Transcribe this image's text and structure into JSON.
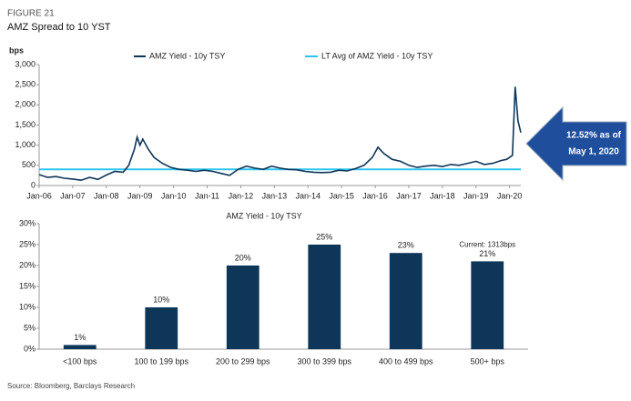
{
  "header": {
    "figure": "FIGURE 21",
    "title": "AMZ Spread to 10 YST"
  },
  "source": "Source: Bloomberg, Barclays Research",
  "chart_data": [
    {
      "type": "line",
      "ylabel": "bps",
      "x": [
        "2006-01",
        "2006-04",
        "2006-07",
        "2006-10",
        "2007-01",
        "2007-04",
        "2007-07",
        "2007-10",
        "2008-01",
        "2008-04",
        "2008-07",
        "2008-09",
        "2008-11",
        "2008-12",
        "2009-01",
        "2009-02",
        "2009-04",
        "2009-06",
        "2009-09",
        "2009-12",
        "2010-03",
        "2010-06",
        "2010-09",
        "2010-12",
        "2011-03",
        "2011-06",
        "2011-09",
        "2011-12",
        "2012-03",
        "2012-06",
        "2012-09",
        "2012-12",
        "2013-03",
        "2013-06",
        "2013-09",
        "2013-12",
        "2014-03",
        "2014-06",
        "2014-09",
        "2014-12",
        "2015-03",
        "2015-06",
        "2015-09",
        "2015-12",
        "2016-02",
        "2016-04",
        "2016-07",
        "2016-10",
        "2017-01",
        "2017-04",
        "2017-07",
        "2017-10",
        "2018-01",
        "2018-04",
        "2018-07",
        "2018-10",
        "2019-01",
        "2019-04",
        "2019-07",
        "2019-10",
        "2019-12",
        "2020-02",
        "2020-03",
        "2020-04",
        "2020-05"
      ],
      "series": [
        {
          "name": "AMZ Yield - 10y TSY",
          "color": "#0d3659",
          "values": [
            270,
            200,
            220,
            180,
            160,
            130,
            200,
            150,
            260,
            350,
            330,
            500,
            900,
            1200,
            1000,
            1150,
            900,
            700,
            550,
            450,
            400,
            380,
            350,
            380,
            350,
            300,
            250,
            400,
            480,
            430,
            400,
            480,
            430,
            400,
            390,
            350,
            330,
            320,
            330,
            380,
            360,
            420,
            500,
            700,
            950,
            800,
            650,
            600,
            500,
            450,
            480,
            500,
            470,
            520,
            500,
            550,
            600,
            520,
            550,
            620,
            650,
            750,
            2450,
            1600,
            1313
          ]
        }
      ],
      "reference_line": {
        "name": "LT Avg of AMZ Yield - 10y TSY",
        "color": "#2ec4ee",
        "value": 400
      },
      "xlim": [
        "2006-01",
        "2020-05"
      ],
      "xticks": [
        {
          "value": "2006-01",
          "label": "Jan-06"
        },
        {
          "value": "2007-01",
          "label": "Jan-07"
        },
        {
          "value": "2008-01",
          "label": "Jan-08"
        },
        {
          "value": "2009-01",
          "label": "Jan-09"
        },
        {
          "value": "2010-01",
          "label": "Jan-10"
        },
        {
          "value": "2011-01",
          "label": "Jan-11"
        },
        {
          "value": "2012-01",
          "label": "Jan-12"
        },
        {
          "value": "2013-01",
          "label": "Jan-13"
        },
        {
          "value": "2014-01",
          "label": "Jan-14"
        },
        {
          "value": "2015-01",
          "label": "Jan-15"
        },
        {
          "value": "2016-01",
          "label": "Jan-16"
        },
        {
          "value": "2017-01",
          "label": "Jan-17"
        },
        {
          "value": "2018-01",
          "label": "Jan-18"
        },
        {
          "value": "2019-01",
          "label": "Jan-19"
        },
        {
          "value": "2020-01",
          "label": "Jan-20"
        }
      ],
      "ylim": [
        0,
        3000
      ],
      "yticks": [
        0,
        500,
        {
          "value": 1000,
          "label": "1,000"
        },
        {
          "value": 1500,
          "label": "1,500"
        },
        {
          "value": 2000,
          "label": "2,000"
        },
        {
          "value": 2500,
          "label": "2,500"
        },
        {
          "value": 3000,
          "label": "3,000"
        }
      ],
      "legend": "top",
      "annotation": [
        "12.52% as of",
        "May 1, 2020"
      ]
    },
    {
      "type": "bar",
      "title": "AMZ Yield - 10y TSY",
      "categories": [
        "<100 bps",
        "100 to 199 bps",
        "200 to 299 bps",
        "300 to 399 bps",
        "400 to 499 bps",
        "500+ bps"
      ],
      "values": [
        1,
        10,
        20,
        25,
        23,
        21
      ],
      "value_labels": [
        "1%",
        "10%",
        "20%",
        "25%",
        "23%",
        "21%"
      ],
      "color": "#0d3659",
      "ylim": [
        0,
        30
      ],
      "yticks": [
        {
          "value": 0,
          "label": "0%"
        },
        {
          "value": 5,
          "label": "5%"
        },
        {
          "value": 10,
          "label": "10%"
        },
        {
          "value": 15,
          "label": "15%"
        },
        {
          "value": 20,
          "label": "20%"
        },
        {
          "value": 25,
          "label": "25%"
        },
        {
          "value": 30,
          "label": "30%"
        }
      ],
      "annotation": "Current: 1313bps"
    }
  ]
}
